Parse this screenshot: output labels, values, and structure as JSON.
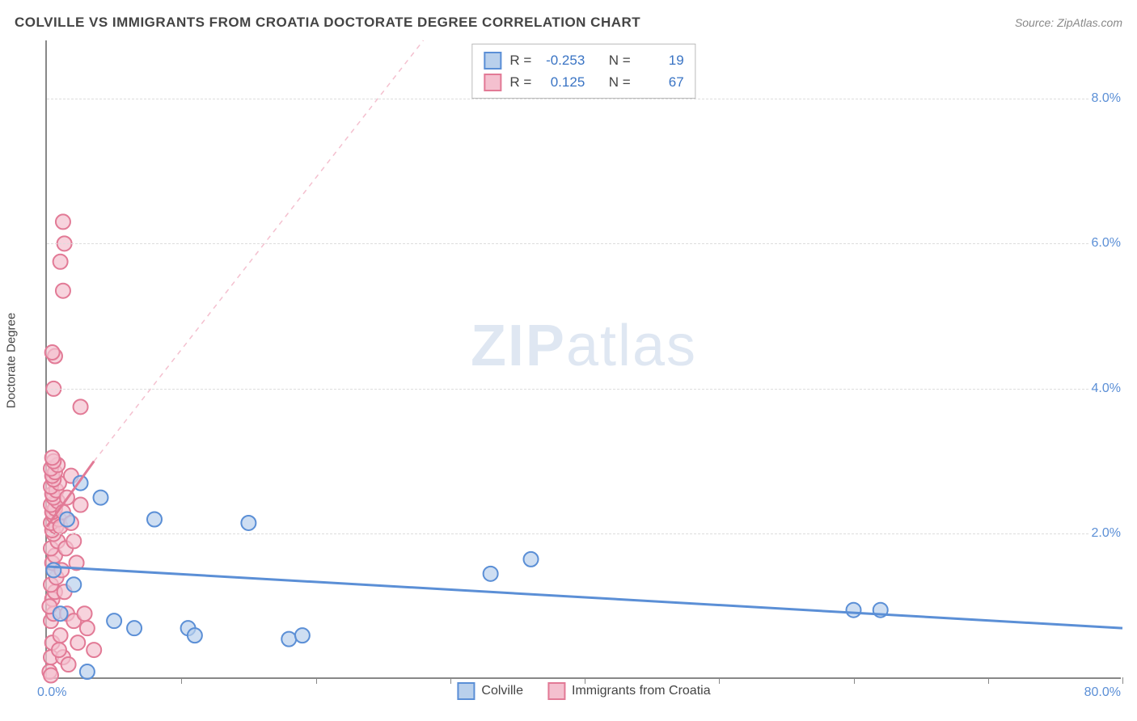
{
  "title": "COLVILLE VS IMMIGRANTS FROM CROATIA DOCTORATE DEGREE CORRELATION CHART",
  "source_label": "Source: ",
  "source_name": "ZipAtlas.com",
  "y_axis_title": "Doctorate Degree",
  "watermark_strong": "ZIP",
  "watermark_light": "atlas",
  "chart": {
    "type": "scatter",
    "x_domain": [
      0,
      80
    ],
    "y_domain": [
      0,
      8.8
    ],
    "x_ticks": [
      10,
      20,
      30,
      40,
      50,
      60,
      70,
      80
    ],
    "y_gridlines": [
      2,
      4,
      6,
      8
    ],
    "y_tick_labels": [
      "2.0%",
      "4.0%",
      "6.0%",
      "8.0%"
    ],
    "x_origin_label": "0.0%",
    "x_max_label": "80.0%",
    "background": "#ffffff",
    "grid_color": "#dddddd",
    "axis_color": "#888888",
    "series": [
      {
        "key": "colville",
        "label": "Colville",
        "color_stroke": "#5b8fd6",
        "color_fill": "#b9d0ec",
        "marker_radius": 9,
        "trend": {
          "x1": 0,
          "y1": 1.55,
          "x2": 80,
          "y2": 0.7,
          "width": 3,
          "dash": ""
        },
        "trend_ext": null,
        "points": [
          [
            0.5,
            1.5
          ],
          [
            1.0,
            0.9
          ],
          [
            1.5,
            2.2
          ],
          [
            2.0,
            1.3
          ],
          [
            2.5,
            2.7
          ],
          [
            3.0,
            0.1
          ],
          [
            4.0,
            2.5
          ],
          [
            5.0,
            0.8
          ],
          [
            6.5,
            0.7
          ],
          [
            8.0,
            2.2
          ],
          [
            10.5,
            0.7
          ],
          [
            11.0,
            0.6
          ],
          [
            15.0,
            2.15
          ],
          [
            18.0,
            0.55
          ],
          [
            19.0,
            0.6
          ],
          [
            33.0,
            1.45
          ],
          [
            36.0,
            1.65
          ],
          [
            60.0,
            0.95
          ],
          [
            62.0,
            0.95
          ]
        ],
        "R": "-0.253",
        "N": "19"
      },
      {
        "key": "croatia",
        "label": "Immigrants from Croatia",
        "color_stroke": "#e27a96",
        "color_fill": "#f4c0cf",
        "marker_radius": 9,
        "trend": {
          "x1": 0,
          "y1": 2.1,
          "x2": 3.5,
          "y2": 3.0,
          "width": 3,
          "dash": ""
        },
        "trend_ext": {
          "x1": 3.5,
          "y1": 3.0,
          "x2": 28,
          "y2": 8.8,
          "width": 1.5,
          "dash": "6,6"
        },
        "points": [
          [
            0.2,
            0.1
          ],
          [
            0.3,
            0.3
          ],
          [
            0.4,
            0.5
          ],
          [
            0.3,
            0.8
          ],
          [
            0.5,
            0.9
          ],
          [
            0.4,
            1.1
          ],
          [
            0.6,
            1.2
          ],
          [
            0.3,
            1.3
          ],
          [
            0.7,
            1.4
          ],
          [
            0.5,
            1.5
          ],
          [
            0.4,
            1.6
          ],
          [
            0.6,
            1.7
          ],
          [
            0.3,
            1.8
          ],
          [
            0.8,
            1.9
          ],
          [
            0.5,
            2.0
          ],
          [
            0.4,
            2.05
          ],
          [
            0.7,
            2.1
          ],
          [
            0.3,
            2.15
          ],
          [
            0.9,
            2.2
          ],
          [
            0.5,
            2.25
          ],
          [
            0.4,
            2.3
          ],
          [
            0.6,
            2.35
          ],
          [
            0.3,
            2.4
          ],
          [
            0.8,
            2.45
          ],
          [
            0.5,
            2.5
          ],
          [
            0.4,
            2.55
          ],
          [
            0.7,
            2.6
          ],
          [
            0.3,
            2.65
          ],
          [
            0.9,
            2.7
          ],
          [
            0.5,
            2.75
          ],
          [
            0.4,
            2.8
          ],
          [
            0.6,
            2.85
          ],
          [
            0.3,
            2.9
          ],
          [
            0.8,
            2.95
          ],
          [
            0.5,
            3.0
          ],
          [
            0.4,
            3.05
          ],
          [
            1.0,
            2.1
          ],
          [
            1.2,
            2.3
          ],
          [
            1.4,
            1.8
          ],
          [
            1.1,
            1.5
          ],
          [
            1.3,
            1.2
          ],
          [
            1.5,
            0.9
          ],
          [
            1.0,
            0.6
          ],
          [
            1.2,
            0.3
          ],
          [
            1.8,
            2.15
          ],
          [
            2.0,
            1.9
          ],
          [
            2.2,
            1.6
          ],
          [
            2.5,
            2.4
          ],
          [
            2.0,
            0.8
          ],
          [
            2.3,
            0.5
          ],
          [
            3.0,
            0.7
          ],
          [
            3.5,
            0.4
          ],
          [
            1.5,
            2.5
          ],
          [
            1.8,
            2.8
          ],
          [
            2.5,
            3.75
          ],
          [
            0.5,
            4.0
          ],
          [
            0.6,
            4.45
          ],
          [
            0.4,
            4.5
          ],
          [
            1.2,
            5.35
          ],
          [
            1.0,
            5.75
          ],
          [
            1.3,
            6.0
          ],
          [
            1.2,
            6.3
          ],
          [
            0.3,
            0.05
          ],
          [
            0.9,
            0.4
          ],
          [
            1.6,
            0.2
          ],
          [
            2.8,
            0.9
          ],
          [
            0.2,
            1.0
          ]
        ],
        "R": "0.125",
        "N": "67"
      }
    ],
    "stats_legend": {
      "R_label": "R =",
      "N_label": "N ="
    }
  }
}
